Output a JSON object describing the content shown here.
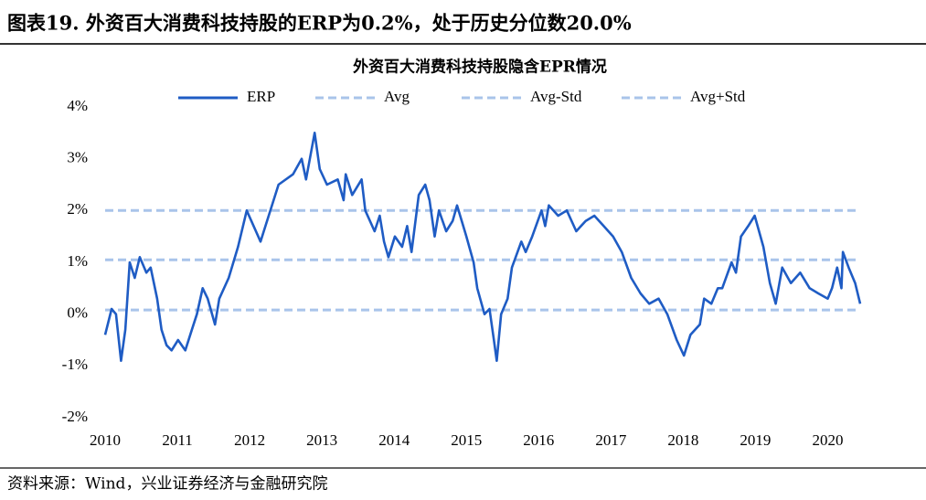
{
  "header": "图表19. 外资百大消费科技持股的ERP为0.2%，处于历史分位数20.0%",
  "source": "资料来源：Wind，兴业证券经济与金融研究院",
  "chart_data": {
    "type": "line",
    "title": "外资百大消费科技持股隐含EPR情况",
    "xlim": [
      2010,
      2020.5
    ],
    "xticks": [
      2010,
      2011,
      2012,
      2013,
      2014,
      2015,
      2016,
      2017,
      2018,
      2019,
      2020
    ],
    "ylim": [
      -2,
      4
    ],
    "yticks": [
      {
        "value": -2,
        "label": "-2%"
      },
      {
        "value": -1,
        "label": "-1%"
      },
      {
        "value": 0,
        "label": "0%"
      },
      {
        "value": 1,
        "label": "1%"
      },
      {
        "value": 2,
        "label": "2%"
      },
      {
        "value": 3,
        "label": "3%"
      },
      {
        "value": 4,
        "label": "4%"
      }
    ],
    "series": [
      {
        "name": "ERP",
        "color": "#1f5cc4",
        "dashed": false,
        "x": [
          2010.0,
          2010.09,
          2010.15,
          2010.22,
          2010.28,
          2010.34,
          2010.41,
          2010.48,
          2010.57,
          2010.63,
          2010.72,
          2010.78,
          2010.85,
          2010.92,
          2011.01,
          2011.11,
          2011.2,
          2011.27,
          2011.35,
          2011.42,
          2011.52,
          2011.58,
          2011.71,
          2011.84,
          2011.96,
          2012.15,
          2012.4,
          2012.6,
          2012.72,
          2012.78,
          2012.9,
          2012.97,
          2013.07,
          2013.22,
          2013.3,
          2013.33,
          2013.42,
          2013.55,
          2013.6,
          2013.73,
          2013.8,
          2013.86,
          2013.92,
          2014.01,
          2014.11,
          2014.18,
          2014.24,
          2014.34,
          2014.43,
          2014.49,
          2014.56,
          2014.62,
          2014.72,
          2014.81,
          2014.87,
          2015.0,
          2015.1,
          2015.15,
          2015.25,
          2015.32,
          2015.38,
          2015.42,
          2015.48,
          2015.57,
          2015.63,
          2015.76,
          2015.82,
          2015.91,
          2016.04,
          2016.09,
          2016.14,
          2016.27,
          2016.39,
          2016.52,
          2016.65,
          2016.77,
          2016.9,
          2017.03,
          2017.15,
          2017.28,
          2017.41,
          2017.53,
          2017.66,
          2017.78,
          2017.91,
          2018.01,
          2018.1,
          2018.23,
          2018.29,
          2018.39,
          2018.48,
          2018.54,
          2018.67,
          2018.73,
          2018.8,
          2018.9,
          2018.99,
          2019.11,
          2019.2,
          2019.28,
          2019.37,
          2019.49,
          2019.62,
          2019.75,
          2019.87,
          2020.0,
          2020.06,
          2020.13,
          2020.19,
          2020.21,
          2020.29,
          2020.38,
          2020.45
        ],
        "values": [
          -0.4,
          0.1,
          0.0,
          -0.9,
          -0.3,
          1.0,
          0.7,
          1.1,
          0.8,
          0.9,
          0.3,
          -0.3,
          -0.6,
          -0.7,
          -0.5,
          -0.7,
          -0.3,
          0.0,
          0.5,
          0.3,
          -0.2,
          0.3,
          0.7,
          1.3,
          2.0,
          1.4,
          2.5,
          2.7,
          3.0,
          2.6,
          3.5,
          2.8,
          2.5,
          2.6,
          2.2,
          2.7,
          2.3,
          2.6,
          2.0,
          1.6,
          1.9,
          1.4,
          1.1,
          1.5,
          1.3,
          1.7,
          1.2,
          2.3,
          2.5,
          2.2,
          1.5,
          2.0,
          1.6,
          1.8,
          2.1,
          1.5,
          1.0,
          0.5,
          0.0,
          0.1,
          -0.5,
          -0.9,
          0.0,
          0.3,
          0.9,
          1.4,
          1.2,
          1.5,
          2.0,
          1.7,
          2.1,
          1.9,
          2.0,
          1.6,
          1.8,
          1.9,
          1.7,
          1.5,
          1.2,
          0.7,
          0.4,
          0.2,
          0.3,
          0.0,
          -0.5,
          -0.8,
          -0.4,
          -0.2,
          0.3,
          0.2,
          0.5,
          0.5,
          1.0,
          0.8,
          1.5,
          1.7,
          1.9,
          1.3,
          0.6,
          0.2,
          0.9,
          0.6,
          0.8,
          0.5,
          0.4,
          0.3,
          0.5,
          0.9,
          0.5,
          1.2,
          0.9,
          0.6,
          0.2
        ]
      },
      {
        "name": "Avg",
        "color": "#a9c4ea",
        "dashed": true,
        "x": [
          2010.0,
          2020.45
        ],
        "values": [
          1.05,
          1.05
        ]
      },
      {
        "name": "Avg-Std",
        "color": "#a9c4ea",
        "dashed": true,
        "x": [
          2010.0,
          2020.45
        ],
        "values": [
          0.08,
          0.08
        ]
      },
      {
        "name": "Avg+Std",
        "color": "#a9c4ea",
        "dashed": true,
        "x": [
          2010.0,
          2020.45
        ],
        "values": [
          2.0,
          2.0
        ]
      }
    ]
  }
}
